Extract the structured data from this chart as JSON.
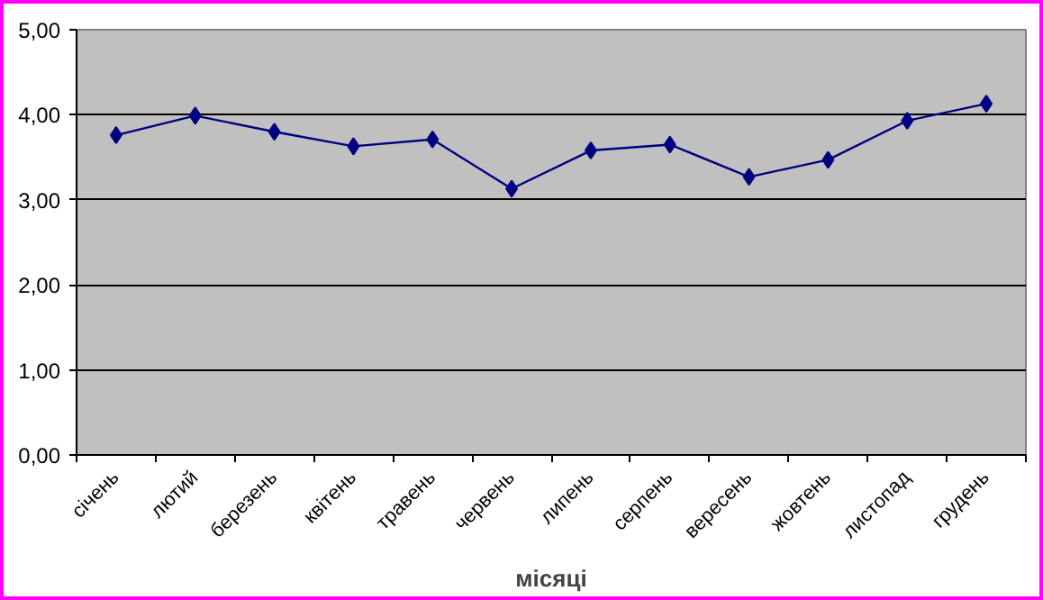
{
  "chart_data": {
    "type": "line",
    "xlabel": "місяці",
    "categories": [
      "січень",
      "лютий",
      "березень",
      "квітень",
      "травень",
      "червень",
      "липень",
      "серпень",
      "вересень",
      "жовтень",
      "листопад",
      "грудень"
    ],
    "series": [
      {
        "color": "#000080",
        "values": [
          3.76,
          3.99,
          3.8,
          3.63,
          3.71,
          3.13,
          3.58,
          3.65,
          3.27,
          3.47,
          3.93,
          4.13
        ]
      }
    ],
    "ylim": [
      0,
      5
    ],
    "yticks": [
      {
        "value": 0,
        "label": "0,00"
      },
      {
        "value": 1,
        "label": "1,00"
      },
      {
        "value": 2,
        "label": "2,00"
      },
      {
        "value": 3,
        "label": "3,00"
      },
      {
        "value": 4,
        "label": "4,00"
      },
      {
        "value": 5,
        "label": "5,00"
      }
    ],
    "grid": "y",
    "marker": "diamond",
    "line_style": "solid"
  }
}
